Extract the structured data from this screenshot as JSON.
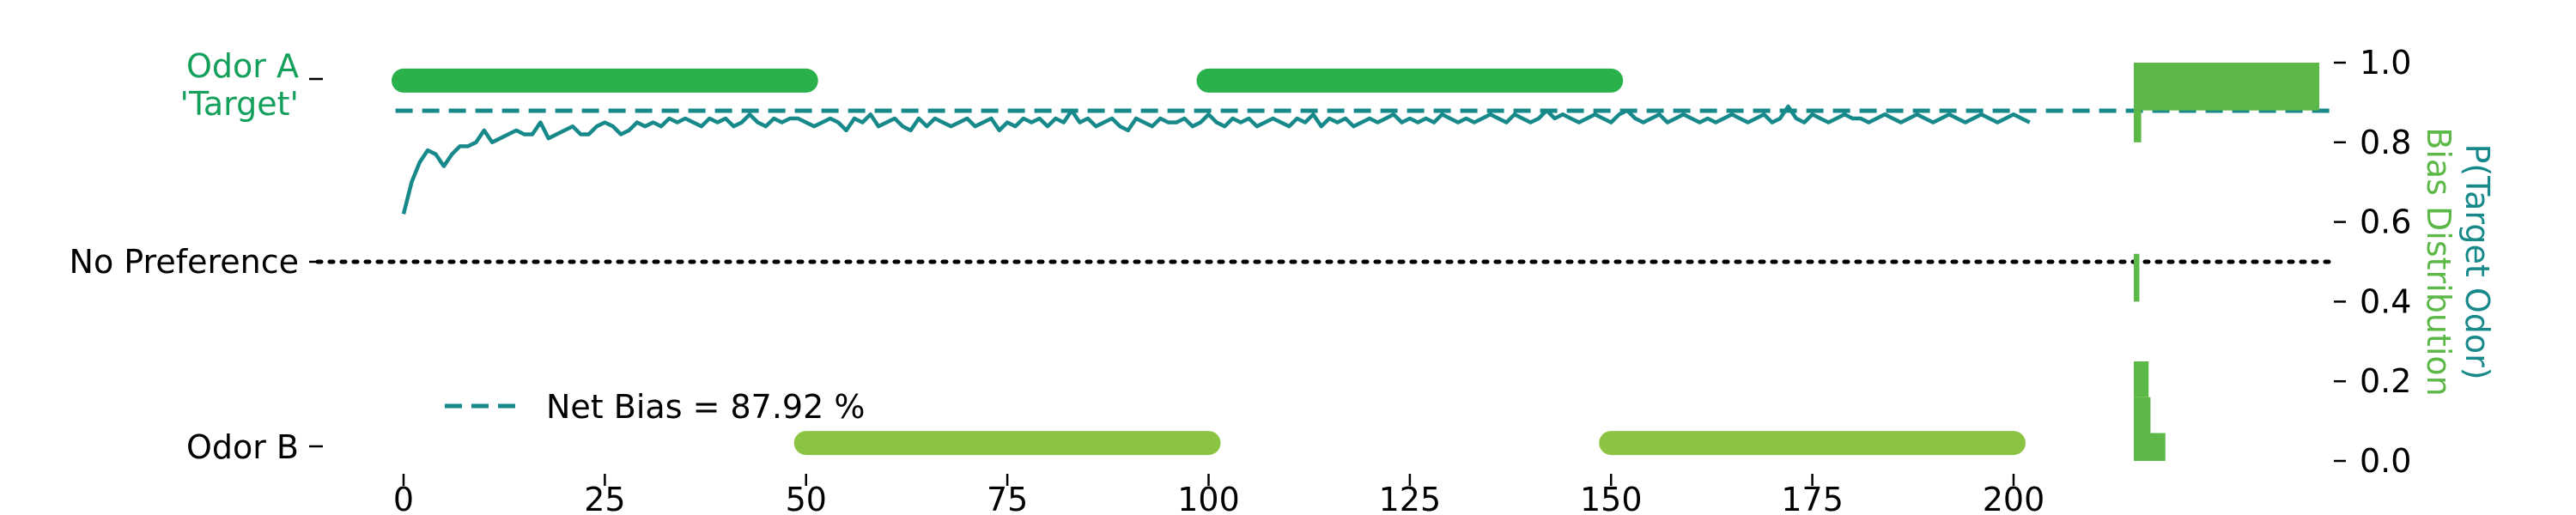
{
  "chart_data": {
    "type": "line",
    "x_ticks": [
      0,
      25,
      50,
      75,
      100,
      125,
      150,
      175,
      200
    ],
    "y_ticks": [
      "0.0",
      "0.2",
      "0.4",
      "0.6",
      "0.8",
      "1.0"
    ],
    "xlim": [
      -1,
      241
    ],
    "ylim": [
      -0.02,
      1.07
    ],
    "left_labels": {
      "odor_a_line1": "Odor A",
      "odor_a_line2": "'Target'",
      "no_preference": "No Preference",
      "odor_b": "Odor B"
    },
    "ylabel_right": "P(Target Odor)",
    "ylabel_right2": "Bias Distribution",
    "legend": {
      "label": "Net Bias = 87.92 %",
      "position": "lower-left"
    },
    "net_bias": 0.8792,
    "no_preference_level": 0.5,
    "odor_a_level": 0.955,
    "odor_b_level": 0.045,
    "odor_a_blocks": [
      [
        0,
        50
      ],
      [
        100,
        150
      ]
    ],
    "odor_b_blocks": [
      [
        50,
        100
      ],
      [
        150,
        200
      ]
    ],
    "series": [
      {
        "values": [
          0.62,
          0.7,
          0.75,
          0.78,
          0.77,
          0.74,
          0.77,
          0.79,
          0.79,
          0.8,
          0.83,
          0.8,
          0.81,
          0.82,
          0.83,
          0.82,
          0.82,
          0.85,
          0.81,
          0.82,
          0.83,
          0.84,
          0.82,
          0.82,
          0.84,
          0.85,
          0.84,
          0.82,
          0.83,
          0.85,
          0.84,
          0.85,
          0.84,
          0.86,
          0.85,
          0.86,
          0.85,
          0.84,
          0.86,
          0.85,
          0.86,
          0.84,
          0.85,
          0.87,
          0.85,
          0.84,
          0.86,
          0.85,
          0.86,
          0.86,
          0.85,
          0.84,
          0.85,
          0.86,
          0.85,
          0.83,
          0.86,
          0.85,
          0.87,
          0.84,
          0.85,
          0.86,
          0.84,
          0.83,
          0.86,
          0.84,
          0.86,
          0.85,
          0.84,
          0.85,
          0.86,
          0.84,
          0.85,
          0.86,
          0.83,
          0.85,
          0.84,
          0.86,
          0.85,
          0.86,
          0.84,
          0.86,
          0.85,
          0.88,
          0.85,
          0.86,
          0.84,
          0.85,
          0.86,
          0.84,
          0.83,
          0.86,
          0.85,
          0.84,
          0.86,
          0.85,
          0.85,
          0.86,
          0.84,
          0.85,
          0.87,
          0.85,
          0.84,
          0.86,
          0.85,
          0.86,
          0.84,
          0.85,
          0.86,
          0.85,
          0.84,
          0.86,
          0.85,
          0.87,
          0.84,
          0.86,
          0.85,
          0.86,
          0.84,
          0.85,
          0.86,
          0.85,
          0.86,
          0.87,
          0.85,
          0.86,
          0.85,
          0.86,
          0.85,
          0.87,
          0.86,
          0.85,
          0.86,
          0.85,
          0.86,
          0.87,
          0.86,
          0.85,
          0.87,
          0.86,
          0.85,
          0.86,
          0.88,
          0.86,
          0.87,
          0.86,
          0.85,
          0.86,
          0.87,
          0.86,
          0.85,
          0.87,
          0.88,
          0.86,
          0.85,
          0.86,
          0.87,
          0.85,
          0.86,
          0.87,
          0.86,
          0.85,
          0.86,
          0.85,
          0.86,
          0.87,
          0.86,
          0.85,
          0.86,
          0.87,
          0.85,
          0.86,
          0.89,
          0.86,
          0.85,
          0.87,
          0.86,
          0.85,
          0.86,
          0.87,
          0.86,
          0.86,
          0.85,
          0.86,
          0.87,
          0.86,
          0.85,
          0.86,
          0.87,
          0.86,
          0.85,
          0.86,
          0.87,
          0.86,
          0.85,
          0.86,
          0.87,
          0.86,
          0.85,
          0.86,
          0.87,
          0.86,
          0.85
        ]
      }
    ],
    "distribution": {
      "bins": [
        {
          "from": 0.88,
          "to": 1.0,
          "count": 1.0
        },
        {
          "from": 0.8,
          "to": 0.88,
          "count": 0.04
        },
        {
          "from": 0.4,
          "to": 0.52,
          "count": 0.03
        },
        {
          "from": 0.16,
          "to": 0.25,
          "count": 0.08
        },
        {
          "from": 0.07,
          "to": 0.16,
          "count": 0.09
        },
        {
          "from": 0.0,
          "to": 0.07,
          "count": 0.17
        }
      ]
    },
    "colors": {
      "line": "#17898a",
      "odor_a": "#2bb14b",
      "odor_b": "#8bc443",
      "hist": "#5cb847",
      "label_a": "#12a05a",
      "text": "#000000"
    }
  }
}
